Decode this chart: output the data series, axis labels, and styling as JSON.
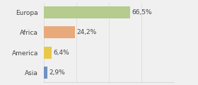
{
  "categories": [
    "Europa",
    "Africa",
    "America",
    "Asia"
  ],
  "values": [
    66.5,
    24.2,
    6.4,
    2.9
  ],
  "labels": [
    "66,5%",
    "24,2%",
    "6,4%",
    "2,9%"
  ],
  "bar_colors": [
    "#b5cc8e",
    "#e8aa7a",
    "#e8c84a",
    "#7090c0"
  ],
  "background_color": "#f0f0f0",
  "xlim": [
    0,
    100
  ],
  "bar_height": 0.6,
  "label_fontsize": 6.5,
  "category_fontsize": 6.5
}
